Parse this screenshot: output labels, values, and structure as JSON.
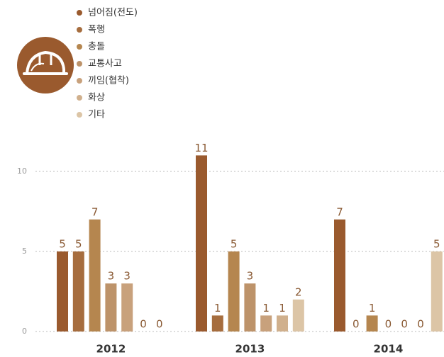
{
  "chart_data": {
    "type": "bar",
    "categories": [
      "2012",
      "2013",
      "2014"
    ],
    "series": [
      {
        "name": "넘어짐(전도)",
        "color": "#9a5a2e",
        "values": [
          5,
          11,
          7
        ]
      },
      {
        "name": "폭행",
        "color": "#a66d3e",
        "values": [
          5,
          1,
          0
        ]
      },
      {
        "name": "충돌",
        "color": "#b5864f",
        "values": [
          7,
          5,
          1
        ]
      },
      {
        "name": "교통사고",
        "color": "#bd936a",
        "values": [
          3,
          3,
          0
        ]
      },
      {
        "name": "끼임(협착)",
        "color": "#c8a17c",
        "values": [
          3,
          1,
          0
        ]
      },
      {
        "name": "화상",
        "color": "#d0b08d",
        "values": [
          0,
          1,
          0
        ]
      },
      {
        "name": "기타",
        "color": "#dcc5a6",
        "values": [
          0,
          2,
          5
        ]
      }
    ],
    "ylim": [
      0,
      12
    ],
    "yticks": [
      0,
      5,
      10
    ],
    "grid": true
  }
}
